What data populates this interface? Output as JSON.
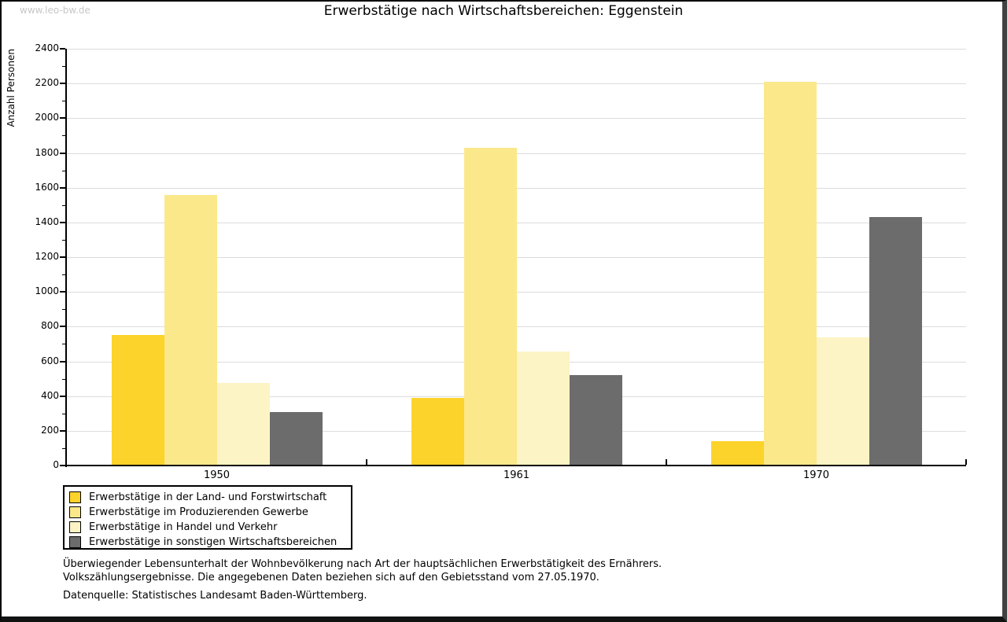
{
  "watermark": "www.leo-bw.de",
  "title": "Erwerbstätige nach Wirtschaftsbereichen: Eggenstein",
  "chart_data": {
    "type": "bar",
    "title": "Erwerbstätige nach Wirtschaftsbereichen: Eggenstein",
    "categories": [
      "1950",
      "1961",
      "1970"
    ],
    "series": [
      {
        "name": "Erwerbstätige in der Land- und Forstwirtschaft",
        "color": "#FCD32B",
        "values": [
          750,
          390,
          140
        ]
      },
      {
        "name": "Erwerbstätige im Produzierenden Gewerbe",
        "color": "#FBE88B",
        "values": [
          1560,
          1830,
          2210
        ]
      },
      {
        "name": "Erwerbstätige in Handel und Verkehr",
        "color": "#FCF4C5",
        "values": [
          475,
          655,
          740
        ]
      },
      {
        "name": "Erwerbstätige in sonstigen Wirtschaftsbereichen",
        "color": "#6C6C6C",
        "values": [
          310,
          520,
          1430
        ]
      }
    ],
    "xlabel": "",
    "ylabel": "Anzahl Personen",
    "ylim": [
      0,
      2400
    ],
    "ytick_step": 200,
    "yminor_step": 100,
    "grid": "horizontal",
    "gridline_color": "#DCDCDC",
    "legend_position": "bottom-left"
  },
  "footnotes": {
    "line1": "Überwiegender Lebensunterhalt der Wohnbevölkerung nach Art der hauptsächlichen Erwerbstätigkeit des Ernährers.",
    "line2": "Volkszählungsergebnisse. Die angegebenen Daten beziehen sich auf den Gebietsstand vom 27.05.1970.",
    "source": "Datenquelle: Statistisches Landesamt Baden-Württemberg."
  }
}
